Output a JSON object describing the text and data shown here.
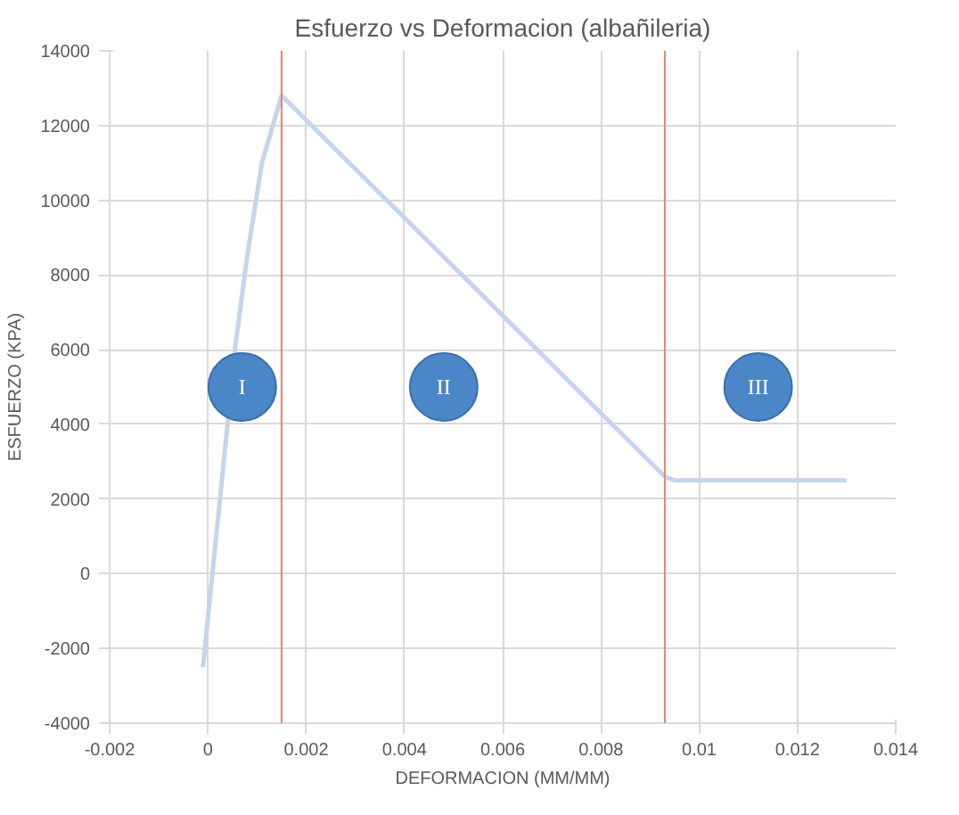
{
  "chart_data": {
    "type": "line",
    "title": "Esfuerzo vs Deformacion (albañileria)",
    "xlabel": "DEFORMACION (MM/MM)",
    "ylabel": "ESFUERZO (KPA)",
    "x": [
      -0.0001,
      0.0004,
      0.00055,
      0.0008,
      0.0011,
      0.0015,
      0.0093,
      0.0095,
      0.013
    ],
    "series": [
      {
        "color": "#c5d5ea",
        "values": [
          -2500,
          4000,
          6000,
          8500,
          11000,
          12800,
          2600,
          2500,
          2500
        ]
      }
    ],
    "xlim": [
      -0.002,
      0.014
    ],
    "ylim": [
      -4000,
      14000
    ],
    "xticks": [
      -0.002,
      0,
      0.002,
      0.004,
      0.006,
      0.008,
      0.01,
      0.012,
      0.014
    ],
    "yticks": [
      -4000,
      -2000,
      0,
      2000,
      4000,
      6000,
      8000,
      10000,
      12000,
      14000
    ],
    "ref_lines": [
      {
        "axis": "x",
        "value": 0.0015,
        "color": "#e8826f"
      },
      {
        "axis": "x",
        "value": 0.0093,
        "color": "#e8826f"
      }
    ],
    "annotations": [
      {
        "text": "I",
        "x": 0.0007,
        "y": 5000
      },
      {
        "text": "II",
        "x": 0.0048,
        "y": 5000
      },
      {
        "text": "III",
        "x": 0.0112,
        "y": 5000
      }
    ],
    "grid": true,
    "marker": "none",
    "line_style": "solid"
  }
}
